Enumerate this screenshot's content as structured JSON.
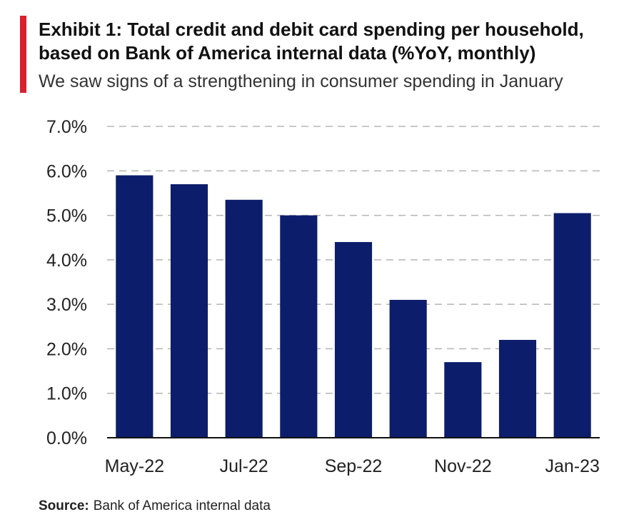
{
  "chart_data": {
    "type": "bar",
    "title": "Exhibit 1: Total credit and debit card spending per household,\nbased on Bank  of America internal data (%YoY, monthly)",
    "subtitle": "We saw signs of a strengthening in consumer spending in January",
    "categories": [
      "May-22",
      "Jun-22",
      "Jul-22",
      "Aug-22",
      "Sep-22",
      "Oct-22",
      "Nov-22",
      "Dec-22",
      "Jan-23"
    ],
    "category_labels_shown": [
      "May-22",
      "",
      "Jul-22",
      "",
      "Sep-22",
      "",
      "Nov-22",
      "",
      "Jan-23"
    ],
    "values": [
      5.9,
      5.7,
      5.35,
      5.0,
      4.4,
      3.1,
      1.7,
      2.2,
      5.05
    ],
    "ylim": [
      0,
      7
    ],
    "yticks": [
      0,
      1,
      2,
      3,
      4,
      5,
      6,
      7
    ],
    "ytick_labels": [
      "0.0%",
      "1.0%",
      "2.0%",
      "3.0%",
      "4.0%",
      "5.0%",
      "6.0%",
      "7.0%"
    ],
    "xlabel": "",
    "ylabel": "",
    "grid": true,
    "bar_color": "#0c1d6b",
    "accent_color": "#d9202f"
  },
  "source": {
    "key": "Source:",
    "text": "Bank of America internal data"
  }
}
